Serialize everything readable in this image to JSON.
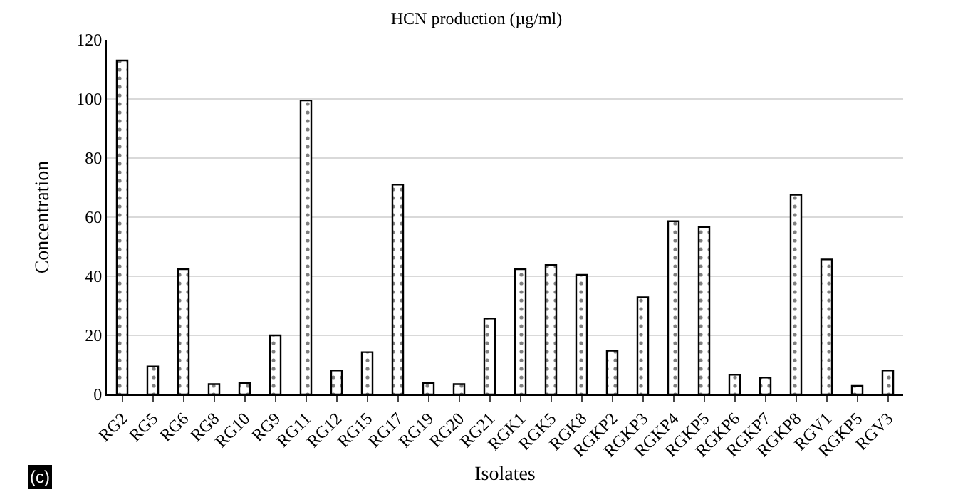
{
  "chart_data": {
    "type": "bar",
    "title": "HCN production (µg/ml)",
    "xlabel": "Isolates",
    "ylabel": "Concentration",
    "categories": [
      "RG2",
      "RG5",
      "RG6",
      "RG8",
      "RG10",
      "RG9",
      "RG11",
      "RG12",
      "RG15",
      "RG17",
      "RG19",
      "RG20",
      "RG21",
      "RGK1",
      "RGK5",
      "RGK8",
      "RGKP2",
      "RGKP3",
      "RGKP4",
      "RGKP5",
      "RGKP6",
      "RGKP7",
      "RGKP8",
      "RGV1",
      "RGKP5",
      "RGV3"
    ],
    "values": [
      113,
      9.5,
      42.4,
      3.5,
      3.8,
      20,
      99.5,
      8.1,
      14.3,
      71,
      3.8,
      3.5,
      25.7,
      42.4,
      43.8,
      40.5,
      14.8,
      32.9,
      58.6,
      56.7,
      6.7,
      5.7,
      67.6,
      45.7,
      2.9,
      8.1
    ],
    "color": "#000000",
    "ylim": [
      0,
      120
    ],
    "yticks": [
      0,
      20,
      40,
      60,
      80,
      100,
      120
    ],
    "grid": "y",
    "annotations": [
      "(c)"
    ]
  }
}
